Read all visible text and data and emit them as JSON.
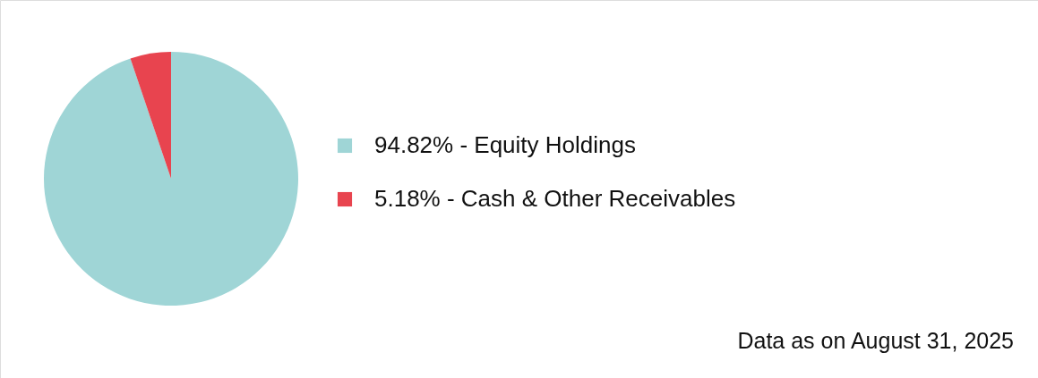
{
  "chart_data": {
    "type": "pie",
    "categories": [
      "94.82% - Equity Holdings",
      "5.18% - Cash & Other Receivables"
    ],
    "values": [
      94.82,
      5.18
    ],
    "colors": [
      "#9fd5d6",
      "#e8444f"
    ],
    "legend": "right",
    "annotations": [
      "Data as on August 31, 2025"
    ]
  }
}
